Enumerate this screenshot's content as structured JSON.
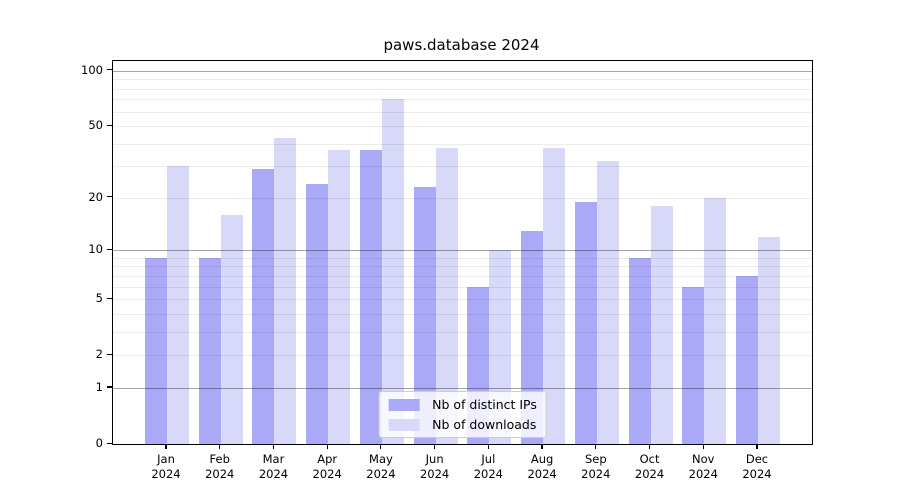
{
  "chart_data": {
    "type": "bar",
    "title": "paws.database 2024",
    "categories": [
      "Jan 2024",
      "Feb 2024",
      "Mar 2024",
      "Apr 2024",
      "May 2024",
      "Jun 2024",
      "Jul 2024",
      "Aug 2024",
      "Sep 2024",
      "Oct 2024",
      "Nov 2024",
      "Dec 2024"
    ],
    "series": [
      {
        "name": "Nb of distinct IPs",
        "color": "#a9a9f7",
        "values": [
          9,
          9,
          29,
          24,
          37,
          23,
          6,
          13,
          19,
          9,
          6,
          7
        ]
      },
      {
        "name": "Nb of downloads",
        "color": "#d8d8f8",
        "values": [
          30,
          16,
          43,
          37,
          70,
          38,
          10,
          38,
          32,
          18,
          20,
          12
        ]
      }
    ],
    "xlabel": "",
    "ylabel": "",
    "y_scale": "log1p",
    "ylim": [
      0,
      113
    ],
    "yticks": [
      100,
      50,
      20,
      10,
      5,
      2,
      1,
      0
    ],
    "y_major_gridlines": [
      1,
      10,
      100
    ],
    "y_minor_gridlines": [
      2,
      3,
      4,
      5,
      6,
      7,
      8,
      9,
      20,
      30,
      40,
      50,
      60,
      70,
      80,
      90
    ],
    "grid": true,
    "legend_position": "lower center",
    "colors": {
      "bar_distinct_ips": "#a9a9f7",
      "bar_downloads": "#d8d8f8",
      "major_grid": "#a6a6a6",
      "minor_grid": "#ececec",
      "axis": "#000000",
      "legend_border": "#cccccc",
      "background": "#ffffff"
    }
  }
}
